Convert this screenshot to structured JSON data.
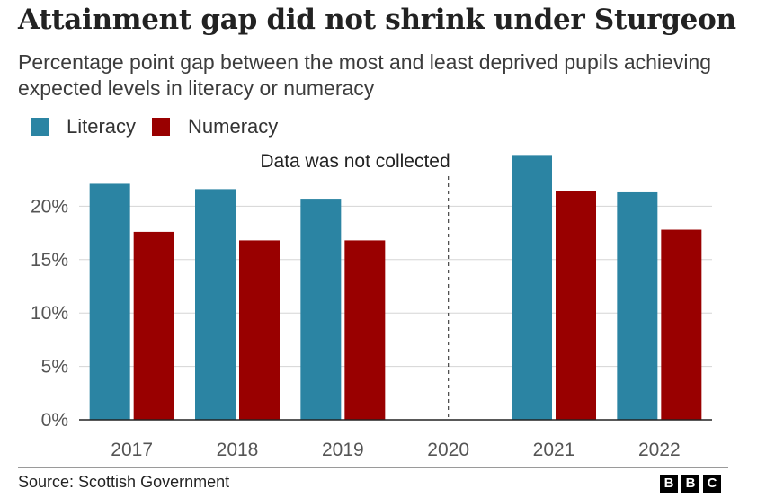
{
  "title": "Attainment gap did not shrink under Sturgeon",
  "subtitle": "Percentage point gap between the most and least deprived pupils achieving expected levels in literacy or numeracy",
  "source": "Source: Scottish Government",
  "logo_letters": [
    "B",
    "B",
    "C"
  ],
  "colors": {
    "literacy": "#2b84a3",
    "numeracy": "#990000",
    "grid": "#d5d5d5",
    "axis": "#222222"
  },
  "chart_data": {
    "type": "bar",
    "categories": [
      "2017",
      "2018",
      "2019",
      "2020",
      "2021",
      "2022"
    ],
    "series": [
      {
        "name": "Literacy",
        "color": "#2b84a3",
        "values": [
          22.1,
          21.6,
          20.7,
          null,
          24.8,
          21.3
        ]
      },
      {
        "name": "Numeracy",
        "color": "#990000",
        "values": [
          17.6,
          16.8,
          16.8,
          null,
          21.4,
          17.8
        ]
      }
    ],
    "yticks": [
      0,
      5,
      10,
      15,
      20
    ],
    "ytick_labels": [
      "0%",
      "5%",
      "10%",
      "15%",
      "20%"
    ],
    "ylim": [
      0,
      25
    ],
    "grid": true,
    "legend_position": "top-left",
    "annotation": {
      "text": "Data was not collected",
      "category": "2020"
    }
  }
}
